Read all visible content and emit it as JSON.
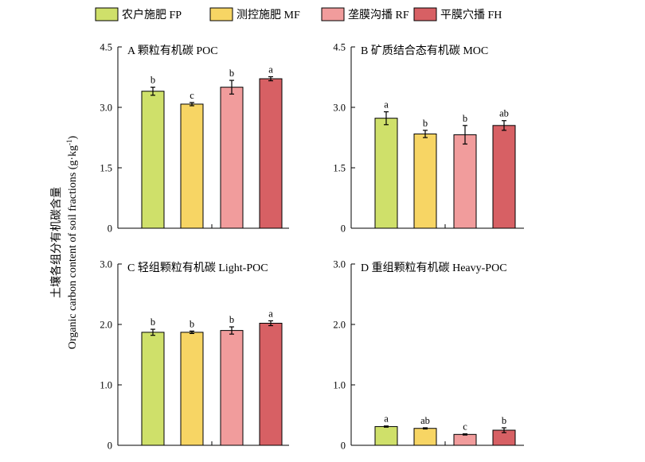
{
  "chart_data": {
    "type": "bar",
    "ylabel_cn": "土壤各组分有机碳含量",
    "ylabel_en": "Organic carbon content of soil fractions (g·kg",
    "ylabel_en_sup": "-1",
    "ylabel_en_end": ")",
    "legend": [
      {
        "name": "农户施肥 FP",
        "color": "#cfe06a"
      },
      {
        "name": "测控施肥 MF",
        "color": "#f7d564"
      },
      {
        "name": "垄膜沟播 RF",
        "color": "#f19c9c"
      },
      {
        "name": "平膜穴播 FH",
        "color": "#d76064"
      }
    ],
    "panels": [
      {
        "id": "A",
        "title": "A   颗粒有机碳 POC",
        "ylim": [
          0,
          4.5
        ],
        "ticks": [
          0,
          1.5,
          3.0,
          4.5
        ],
        "tick_labels": [
          "0",
          "1.5",
          "3.0",
          "4.5"
        ],
        "values": [
          3.4,
          3.08,
          3.5,
          3.71
        ],
        "errors": [
          0.1,
          0.04,
          0.17,
          0.05
        ],
        "letters": [
          "b",
          "c",
          "b",
          "a"
        ]
      },
      {
        "id": "B",
        "title": "B   矿质结合态有机碳 MOC",
        "ylim": [
          0,
          4.5
        ],
        "ticks": [
          0,
          1.5,
          3.0,
          4.5
        ],
        "tick_labels": [
          "0",
          "1.5",
          "3.0",
          "4.5"
        ],
        "values": [
          2.73,
          2.34,
          2.32,
          2.55
        ],
        "errors": [
          0.16,
          0.09,
          0.23,
          0.12
        ],
        "letters": [
          "a",
          "b",
          "b",
          "ab"
        ]
      },
      {
        "id": "C",
        "title": "C  轻组颗粒有机碳 Light-POC",
        "ylim": [
          0,
          3.0
        ],
        "ticks": [
          0,
          1.0,
          2.0,
          3.0
        ],
        "tick_labels": [
          "0",
          "1.0",
          "2.0",
          "3.0"
        ],
        "values": [
          1.87,
          1.87,
          1.9,
          2.02
        ],
        "errors": [
          0.05,
          0.02,
          0.06,
          0.04
        ],
        "letters": [
          "b",
          "b",
          "b",
          "a"
        ]
      },
      {
        "id": "D",
        "title": "D  重组颗粒有机碳 Heavy-POC",
        "ylim": [
          0,
          3.0
        ],
        "ticks": [
          0,
          1.0,
          2.0,
          3.0
        ],
        "tick_labels": [
          "0",
          "1.0",
          "2.0",
          "3.0"
        ],
        "values": [
          0.31,
          0.28,
          0.18,
          0.25
        ],
        "errors": [
          0.01,
          0.01,
          0.01,
          0.04
        ],
        "letters": [
          "a",
          "ab",
          "c",
          "b"
        ]
      }
    ]
  }
}
